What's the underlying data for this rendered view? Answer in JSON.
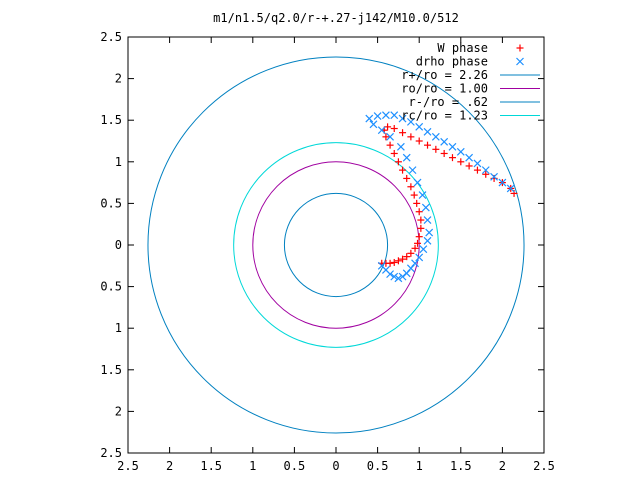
{
  "chart_data": {
    "type": "scatter",
    "title": "m1/n1.5/q2.0/r-+.27-j142/M10.0/512",
    "xlim": [
      -2.5,
      2.5
    ],
    "ylim": [
      -2.5,
      2.5
    ],
    "x_ticks": [
      -2.5,
      -2,
      -1.5,
      -1,
      -0.5,
      0,
      0.5,
      1,
      1.5,
      2,
      2.5
    ],
    "y_ticks": [
      -2.5,
      -2,
      -1.5,
      -1,
      -0.5,
      0,
      0.5,
      1,
      1.5,
      2,
      2.5
    ],
    "x_tick_labels": [
      "2.5",
      "2",
      "1.5",
      "1",
      "0.5",
      "0",
      "0.5",
      "1",
      "1.5",
      "2",
      "2.5"
    ],
    "y_tick_labels": [
      "2.5",
      "2",
      "1.5",
      "1",
      "0.5",
      "0",
      "0.5",
      "1",
      "1.5",
      "2",
      "2.5"
    ],
    "grid": false,
    "legend_position": "top-right",
    "series": [
      {
        "name": "W phase",
        "marker": "plus",
        "color": "#ff0000",
        "points": [
          [
            0.55,
            -0.22
          ],
          [
            0.6,
            -0.22
          ],
          [
            0.65,
            -0.22
          ],
          [
            0.7,
            -0.21
          ],
          [
            0.75,
            -0.19
          ],
          [
            0.8,
            -0.17
          ],
          [
            0.85,
            -0.14
          ],
          [
            0.9,
            -0.1
          ],
          [
            0.95,
            -0.04
          ],
          [
            0.98,
            0.02
          ],
          [
            1.0,
            0.1
          ],
          [
            1.02,
            0.2
          ],
          [
            1.02,
            0.3
          ],
          [
            1.0,
            0.4
          ],
          [
            0.97,
            0.5
          ],
          [
            0.94,
            0.6
          ],
          [
            0.9,
            0.7
          ],
          [
            0.85,
            0.8
          ],
          [
            0.8,
            0.9
          ],
          [
            0.75,
            1.0
          ],
          [
            0.7,
            1.1
          ],
          [
            0.65,
            1.2
          ],
          [
            0.6,
            1.3
          ],
          [
            0.58,
            1.38
          ],
          [
            0.62,
            1.42
          ],
          [
            0.7,
            1.4
          ],
          [
            0.8,
            1.35
          ],
          [
            0.9,
            1.3
          ],
          [
            1.0,
            1.25
          ],
          [
            1.1,
            1.2
          ],
          [
            1.2,
            1.15
          ],
          [
            1.3,
            1.1
          ],
          [
            1.4,
            1.05
          ],
          [
            1.5,
            1.0
          ],
          [
            1.6,
            0.95
          ],
          [
            1.7,
            0.9
          ],
          [
            1.8,
            0.85
          ],
          [
            1.9,
            0.8
          ],
          [
            2.0,
            0.75
          ],
          [
            2.1,
            0.68
          ],
          [
            2.14,
            0.62
          ]
        ]
      },
      {
        "name": "drho phase",
        "marker": "cross",
        "color": "#1e90ff",
        "points": [
          [
            0.55,
            -0.25
          ],
          [
            0.6,
            -0.3
          ],
          [
            0.65,
            -0.35
          ],
          [
            0.7,
            -0.38
          ],
          [
            0.75,
            -0.4
          ],
          [
            0.8,
            -0.38
          ],
          [
            0.85,
            -0.34
          ],
          [
            0.9,
            -0.28
          ],
          [
            0.95,
            -0.22
          ],
          [
            1.0,
            -0.15
          ],
          [
            1.05,
            -0.05
          ],
          [
            1.1,
            0.05
          ],
          [
            1.12,
            0.15
          ],
          [
            1.1,
            0.3
          ],
          [
            1.08,
            0.45
          ],
          [
            1.04,
            0.6
          ],
          [
            0.98,
            0.75
          ],
          [
            0.92,
            0.9
          ],
          [
            0.85,
            1.05
          ],
          [
            0.78,
            1.18
          ],
          [
            0.65,
            1.3
          ],
          [
            0.55,
            1.38
          ],
          [
            0.45,
            1.45
          ],
          [
            0.4,
            1.52
          ],
          [
            0.5,
            1.55
          ],
          [
            0.6,
            1.56
          ],
          [
            0.7,
            1.56
          ],
          [
            0.8,
            1.52
          ],
          [
            0.9,
            1.48
          ],
          [
            1.0,
            1.42
          ],
          [
            1.1,
            1.36
          ],
          [
            1.2,
            1.3
          ],
          [
            1.3,
            1.24
          ],
          [
            1.4,
            1.18
          ],
          [
            1.5,
            1.12
          ],
          [
            1.6,
            1.05
          ],
          [
            1.7,
            0.98
          ],
          [
            1.8,
            0.9
          ],
          [
            1.9,
            0.82
          ],
          [
            2.0,
            0.75
          ],
          [
            2.1,
            0.68
          ]
        ]
      },
      {
        "name": "r+/ro = 2.26",
        "type": "circle",
        "radius": 2.26,
        "color": "#0080c0"
      },
      {
        "name": "ro/ro = 1.00",
        "type": "circle",
        "radius": 1.0,
        "color": "#a000a0"
      },
      {
        "name": "r-/ro = .62",
        "type": "circle",
        "radius": 0.62,
        "color": "#0080c0"
      },
      {
        "name": "rc/ro = 1.23",
        "type": "circle",
        "radius": 1.23,
        "color": "#00d8d8"
      }
    ]
  }
}
